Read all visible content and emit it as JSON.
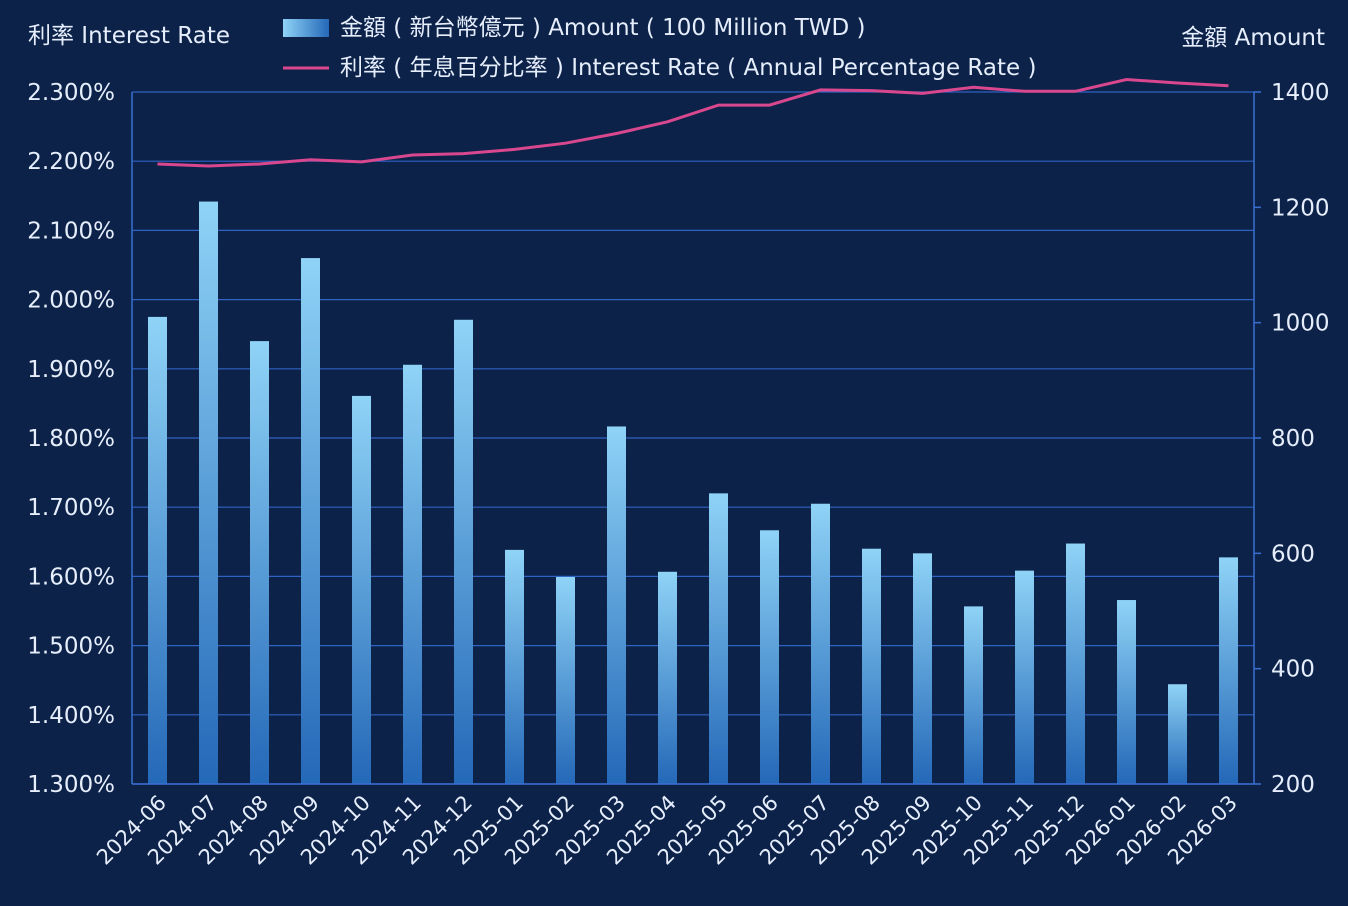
{
  "chart_data": {
    "type": "bar+line",
    "left_axis_title": "利率 Interest Rate",
    "right_axis_title": "金額 Amount",
    "legend": {
      "bar_label": "金額 ( 新台幣億元 ) Amount ( 100 Million TWD )",
      "line_label": "利率 ( 年息百分比率 ) Interest Rate ( Annual Percentage Rate )"
    },
    "categories": [
      "2024-06",
      "2024-07",
      "2024-08",
      "2024-09",
      "2024-10",
      "2024-11",
      "2024-12",
      "2025-01",
      "2025-02",
      "2025-03",
      "2025-04",
      "2025-05",
      "2025-06",
      "2025-07",
      "2025-08",
      "2025-09",
      "2025-10",
      "2025-11",
      "2025-12",
      "2026-01",
      "2026-02",
      "2026-03"
    ],
    "series": [
      {
        "name": "金額 ( 新台幣億元 ) Amount ( 100 Million TWD )",
        "type": "bar",
        "axis": "right",
        "values": [
          1010,
          1210,
          968,
          1112,
          873,
          927,
          1005,
          606,
          559,
          820,
          568,
          704,
          640,
          686,
          608,
          600,
          508,
          570,
          617,
          519,
          373,
          593
        ]
      },
      {
        "name": "利率 ( 年息百分比率 ) Interest Rate ( Annual Percentage Rate )",
        "type": "line",
        "axis": "left",
        "values": [
          2.196,
          2.193,
          2.196,
          2.202,
          2.199,
          2.209,
          2.211,
          2.217,
          2.226,
          2.24,
          2.257,
          2.281,
          2.281,
          2.303,
          2.302,
          2.298,
          2.307,
          2.301,
          2.301,
          2.318,
          2.313,
          2.309
        ]
      }
    ],
    "left_axis": {
      "min": 1.3,
      "max": 2.3,
      "ticks": [
        "1.300%",
        "1.400%",
        "1.500%",
        "1.600%",
        "1.700%",
        "1.800%",
        "1.900%",
        "2.000%",
        "2.100%",
        "2.200%",
        "2.300%"
      ]
    },
    "right_axis": {
      "min": 200,
      "max": 1400,
      "ticks": [
        "200",
        "400",
        "600",
        "800",
        "1000",
        "1200",
        "1400"
      ]
    },
    "grid": true,
    "legend_position": "top-center",
    "colors": {
      "background": "#0c2249",
      "grid": "#2f63c2",
      "axis": "#3a6fd0",
      "bar_top": "#8fd3f7",
      "bar_bottom": "#2468b8",
      "line": "#d9478f",
      "text": "#e6eefc"
    }
  }
}
